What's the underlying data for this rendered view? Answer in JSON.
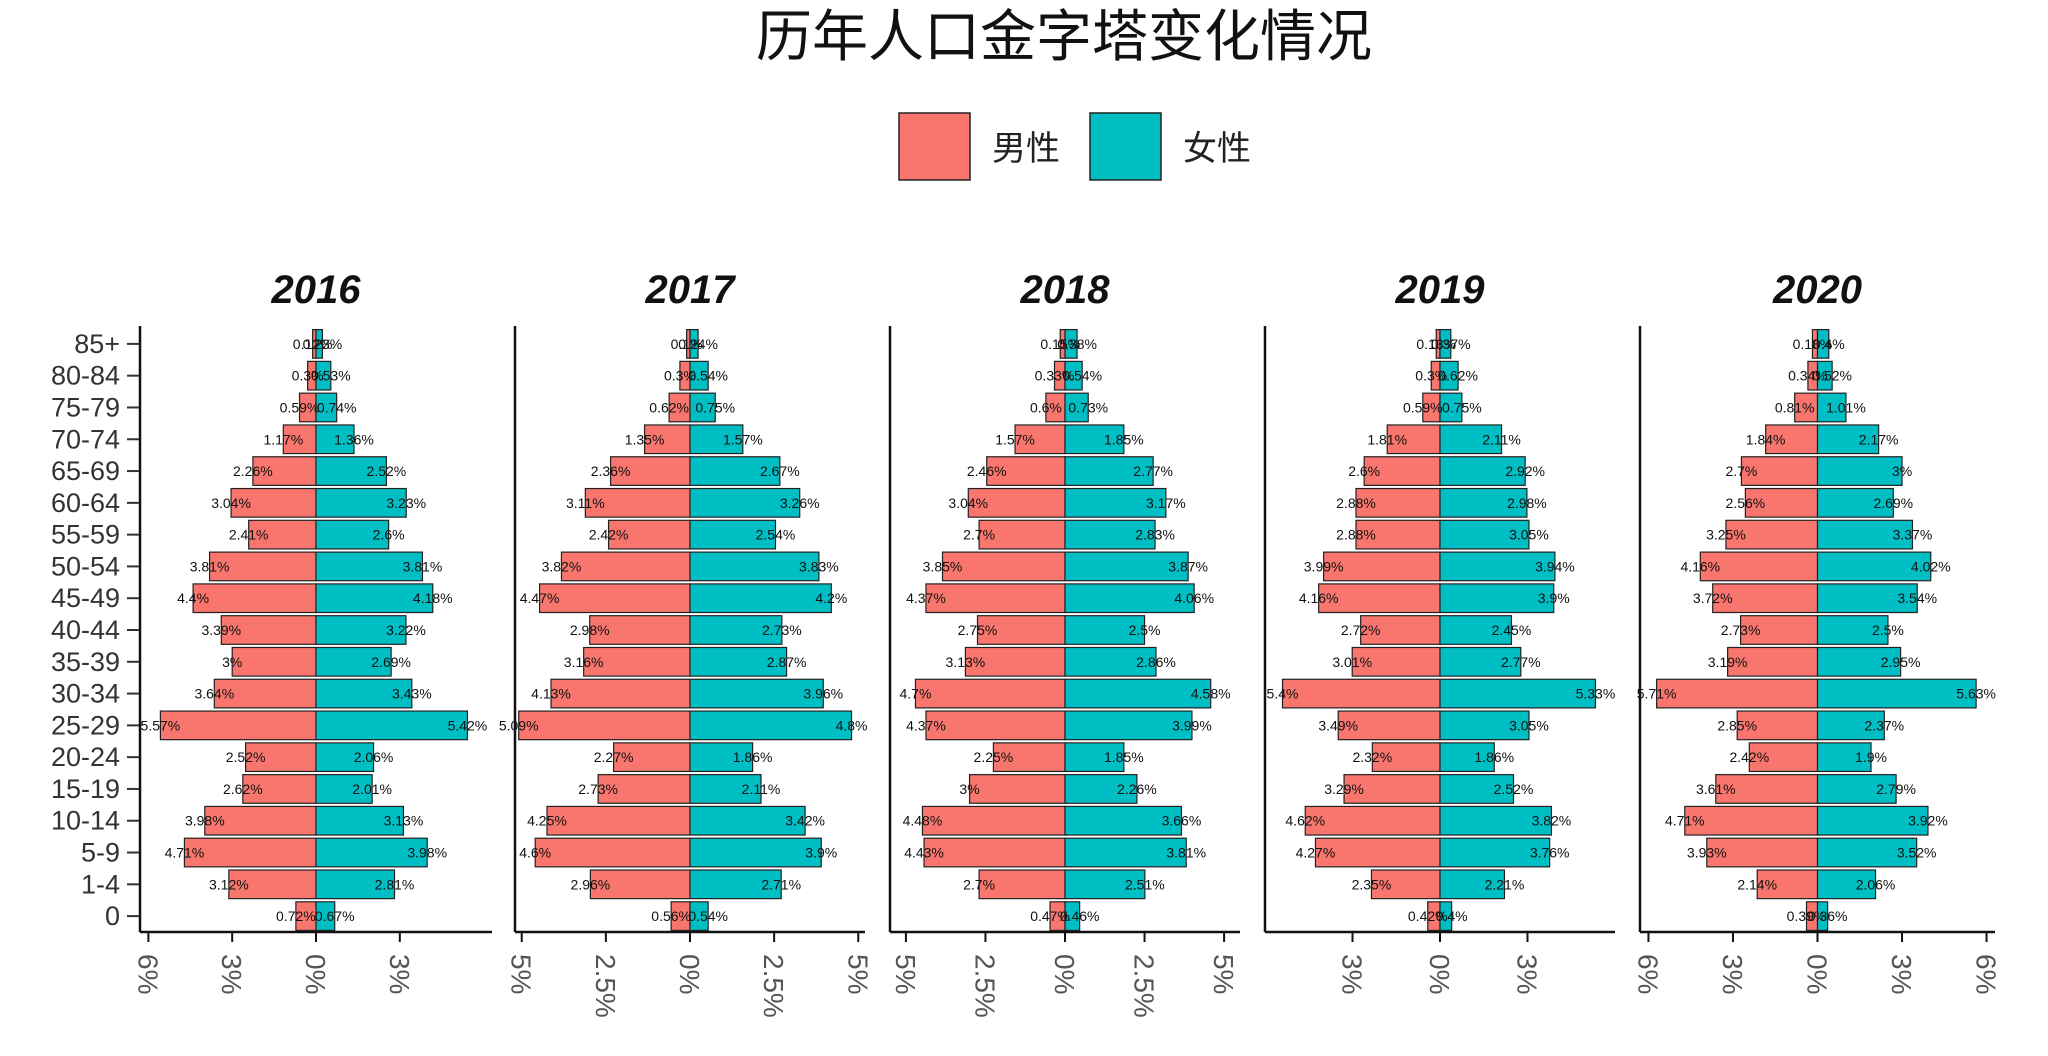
{
  "chart_data": {
    "type": "bar",
    "title": "历年人口金字塔变化情况",
    "legend": {
      "position": "top-center",
      "entries": [
        {
          "name": "男性",
          "color": "#F8766D"
        },
        {
          "name": "女性",
          "color": "#00BFC4"
        }
      ]
    },
    "categories": [
      "85+",
      "80-84",
      "75-79",
      "70-74",
      "65-69",
      "60-64",
      "55-59",
      "50-54",
      "45-49",
      "40-44",
      "35-39",
      "30-34",
      "25-29",
      "20-24",
      "15-19",
      "10-14",
      "5-9",
      "1-4",
      "0"
    ],
    "grid": false,
    "panels": [
      {
        "year": "2016",
        "xlim": [
          -6.3,
          6.3
        ],
        "xticks": [
          {
            "value": -6,
            "label": "6%"
          },
          {
            "value": -3,
            "label": "3%"
          },
          {
            "value": 0,
            "label": "0%"
          },
          {
            "value": 3,
            "label": "3%"
          }
        ],
        "series": [
          {
            "name": "男性",
            "values": [
              0.12,
              0.3,
              0.59,
              1.17,
              2.26,
              3.04,
              2.41,
              3.81,
              4.4,
              3.39,
              3,
              3.64,
              5.57,
              2.52,
              2.62,
              3.98,
              4.71,
              3.12,
              0.72
            ],
            "labels": [
              "0.12%",
              "0.3%",
              "0.59%",
              "1.17%",
              "2.26%",
              "3.04%",
              "2.41%",
              "3.81%",
              "4.4%",
              "3.39%",
              "3%",
              "3.64%",
              "5.57%",
              "2.52%",
              "2.62%",
              "3.98%",
              "4.71%",
              "3.12%",
              "0.72%"
            ]
          },
          {
            "name": "女性",
            "values": [
              0.23,
              0.53,
              0.74,
              1.36,
              2.52,
              3.23,
              2.6,
              3.81,
              4.18,
              3.22,
              2.69,
              3.43,
              5.42,
              2.06,
              2.01,
              3.13,
              3.98,
              2.81,
              0.67
            ],
            "labels": [
              "0.23%",
              "0.53%",
              "0.74%",
              "1.36%",
              "2.52%",
              "3.23%",
              "2.6%",
              "3.81%",
              "4.18%",
              "3.22%",
              "2.69%",
              "3.43%",
              "5.42%",
              "2.06%",
              "2.01%",
              "3.13%",
              "3.98%",
              "2.81%",
              "0.67%"
            ]
          }
        ]
      },
      {
        "year": "2017",
        "xlim": [
          -5.2,
          5.2
        ],
        "xticks": [
          {
            "value": -5,
            "label": "5%"
          },
          {
            "value": -2.5,
            "label": "2.5%"
          },
          {
            "value": 0,
            "label": "0%"
          },
          {
            "value": 2.5,
            "label": "2.5%"
          },
          {
            "value": 5,
            "label": "5%"
          }
        ],
        "series": [
          {
            "name": "男性",
            "values": [
              0.1,
              0.3,
              0.62,
              1.35,
              2.36,
              3.11,
              2.42,
              3.82,
              4.47,
              2.98,
              3.16,
              4.13,
              5.09,
              2.27,
              2.73,
              4.25,
              4.6,
              2.96,
              0.56
            ],
            "labels": [
              "0.1%",
              "0.3%",
              "0.62%",
              "1.35%",
              "2.36%",
              "3.11%",
              "2.42%",
              "3.82%",
              "4.47%",
              "2.98%",
              "3.16%",
              "4.13%",
              "5.09%",
              "2.27%",
              "2.73%",
              "4.25%",
              "4.6%",
              "2.96%",
              "0.56%"
            ]
          },
          {
            "name": "女性",
            "values": [
              0.24,
              0.54,
              0.75,
              1.57,
              2.67,
              3.26,
              2.54,
              3.83,
              4.2,
              2.73,
              2.87,
              3.96,
              4.8,
              1.86,
              2.11,
              3.42,
              3.9,
              2.71,
              0.54
            ],
            "labels": [
              "0.24%",
              "0.54%",
              "0.75%",
              "1.57%",
              "2.67%",
              "3.26%",
              "2.54%",
              "3.83%",
              "4.2%",
              "2.73%",
              "2.87%",
              "3.96%",
              "4.8%",
              "1.86%",
              "2.11%",
              "3.42%",
              "3.9%",
              "2.71%",
              "0.54%"
            ]
          }
        ]
      },
      {
        "year": "2018",
        "xlim": [
          -5.5,
          5.5
        ],
        "xticks": [
          {
            "value": -5,
            "label": "5%"
          },
          {
            "value": -2.5,
            "label": "2.5%"
          },
          {
            "value": 0,
            "label": "0%"
          },
          {
            "value": 2.5,
            "label": "2.5%"
          },
          {
            "value": 5,
            "label": "5%"
          }
        ],
        "series": [
          {
            "name": "男性",
            "values": [
              0.15,
              0.33,
              0.6,
              1.57,
              2.46,
              3.04,
              2.7,
              3.85,
              4.37,
              2.75,
              3.13,
              4.7,
              4.37,
              2.25,
              3,
              4.48,
              4.43,
              2.7,
              0.47
            ],
            "labels": [
              "0.15%",
              "0.33%",
              "0.6%",
              "1.57%",
              "2.46%",
              "3.04%",
              "2.7%",
              "3.85%",
              "4.37%",
              "2.75%",
              "3.13%",
              "4.7%",
              "4.37%",
              "2.25%",
              "3%",
              "4.48%",
              "4.43%",
              "2.7%",
              "0.47%"
            ]
          },
          {
            "name": "女性",
            "values": [
              0.38,
              0.54,
              0.73,
              1.85,
              2.77,
              3.17,
              2.83,
              3.87,
              4.06,
              2.5,
              2.86,
              4.58,
              3.99,
              1.85,
              2.26,
              3.66,
              3.81,
              2.51,
              0.46
            ],
            "labels": [
              "0.38%",
              "0.54%",
              "0.73%",
              "1.85%",
              "2.77%",
              "3.17%",
              "2.83%",
              "3.87%",
              "4.06%",
              "2.5%",
              "2.86%",
              "4.58%",
              "3.99%",
              "1.85%",
              "2.26%",
              "3.66%",
              "3.81%",
              "2.51%",
              "0.46%"
            ]
          }
        ]
      },
      {
        "year": "2019",
        "xlim": [
          -6.0,
          6.0
        ],
        "xticks": [
          {
            "value": -3,
            "label": "3%"
          },
          {
            "value": 0,
            "label": "0%"
          },
          {
            "value": 3,
            "label": "3%"
          }
        ],
        "series": [
          {
            "name": "男性",
            "values": [
              0.13,
              0.3,
              0.59,
              1.81,
              2.6,
              2.88,
              2.88,
              3.99,
              4.16,
              2.72,
              3.01,
              5.4,
              3.49,
              2.32,
              3.29,
              4.62,
              4.27,
              2.35,
              0.42
            ],
            "labels": [
              "0.13%",
              "0.3%",
              "0.59%",
              "1.81%",
              "2.6%",
              "2.88%",
              "2.88%",
              "3.99%",
              "4.16%",
              "2.72%",
              "3.01%",
              "5.4%",
              "3.49%",
              "2.32%",
              "3.29%",
              "4.62%",
              "4.27%",
              "2.35%",
              "0.42%"
            ]
          },
          {
            "name": "女性",
            "values": [
              0.37,
              0.62,
              0.75,
              2.11,
              2.92,
              2.98,
              3.05,
              3.94,
              3.9,
              2.45,
              2.77,
              5.33,
              3.05,
              1.86,
              2.52,
              3.82,
              3.76,
              2.21,
              0.4
            ],
            "labels": [
              "0.37%",
              "0.62%",
              "0.75%",
              "2.11%",
              "2.92%",
              "2.98%",
              "3.05%",
              "3.94%",
              "3.9%",
              "2.45%",
              "2.77%",
              "5.33%",
              "3.05%",
              "1.86%",
              "2.52%",
              "3.82%",
              "3.76%",
              "2.21%",
              "0.4%"
            ]
          }
        ]
      },
      {
        "year": "2020",
        "xlim": [
          -6.3,
          6.3
        ],
        "xticks": [
          {
            "value": -6,
            "label": "6%"
          },
          {
            "value": -3,
            "label": "3%"
          },
          {
            "value": 0,
            "label": "0%"
          },
          {
            "value": 3,
            "label": "3%"
          },
          {
            "value": 6,
            "label": "6%"
          }
        ],
        "series": [
          {
            "name": "男性",
            "values": [
              0.18,
              0.34,
              0.81,
              1.84,
              2.7,
              2.56,
              3.25,
              4.16,
              3.72,
              2.73,
              3.19,
              5.71,
              2.85,
              2.42,
              3.61,
              4.71,
              3.93,
              2.14,
              0.39
            ],
            "labels": [
              "0.18%",
              "0.34%",
              "0.81%",
              "1.84%",
              "2.7%",
              "2.56%",
              "3.25%",
              "4.16%",
              "3.72%",
              "2.73%",
              "3.19%",
              "5.71%",
              "2.85%",
              "2.42%",
              "3.61%",
              "4.71%",
              "3.93%",
              "2.14%",
              "0.39%"
            ]
          },
          {
            "name": "女性",
            "values": [
              0.4,
              0.52,
              1.01,
              2.17,
              3,
              2.69,
              3.37,
              4.02,
              3.54,
              2.5,
              2.95,
              5.63,
              2.37,
              1.9,
              2.79,
              3.92,
              3.52,
              2.06,
              0.36
            ],
            "labels": [
              "0.4%",
              "0.52%",
              "1.01%",
              "2.17%",
              "3%",
              "2.69%",
              "3.37%",
              "4.02%",
              "3.54%",
              "2.5%",
              "2.95%",
              "5.63%",
              "2.37%",
              "1.9%",
              "2.79%",
              "3.92%",
              "3.52%",
              "2.06%",
              "0.36%"
            ]
          }
        ]
      }
    ]
  }
}
